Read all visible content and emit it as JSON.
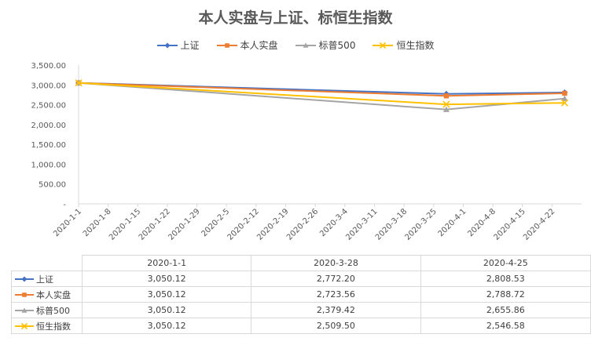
{
  "chart_data": {
    "type": "line",
    "title": "本人实盘与上证、标恒生指数",
    "x_axis_ticks": [
      "2020-1-1",
      "2020-1-8",
      "2020-1-15",
      "2020-1-22",
      "2020-1-29",
      "2020-2-5",
      "2020-2-12",
      "2020-2-19",
      "2020-2-26",
      "2020-3-4",
      "2020-3-11",
      "2020-3-18",
      "2020-3-25",
      "2020-4-1",
      "2020-4-8",
      "2020-4-15",
      "2020-4-22"
    ],
    "x": [
      "2020-1-1",
      "2020-3-28",
      "2020-4-25"
    ],
    "y_ticks": [
      "-",
      "500.00",
      "1,000.00",
      "1,500.00",
      "2,000.00",
      "2,500.00",
      "3,000.00",
      "3,500.00"
    ],
    "ylim": [
      0,
      3500
    ],
    "xlim": [
      "2020-1-1",
      "2020-4-29"
    ],
    "grid": false,
    "legend_position": "top",
    "series": [
      {
        "name": "上证",
        "color": "#4472C4",
        "marker": "diamond",
        "values": [
          3050.12,
          2772.2,
          2808.53
        ],
        "labels": [
          "3,050.12",
          "2,772.20",
          "2,808.53"
        ]
      },
      {
        "name": "本人实盘",
        "color": "#ED7D31",
        "marker": "square",
        "values": [
          3050.12,
          2723.56,
          2788.72
        ],
        "labels": [
          "3,050.12",
          "2,723.56",
          "2,788.72"
        ]
      },
      {
        "name": "标普500",
        "color": "#A5A5A5",
        "marker": "triangle",
        "values": [
          3050.12,
          2379.42,
          2655.86
        ],
        "labels": [
          "3,050.12",
          "2,379.42",
          "2,655.86"
        ]
      },
      {
        "name": "恒生指数",
        "color": "#FFC000",
        "marker": "x",
        "values": [
          3050.12,
          2509.5,
          2546.58
        ],
        "labels": [
          "3,050.12",
          "2,509.50",
          "2,546.58"
        ]
      }
    ]
  }
}
